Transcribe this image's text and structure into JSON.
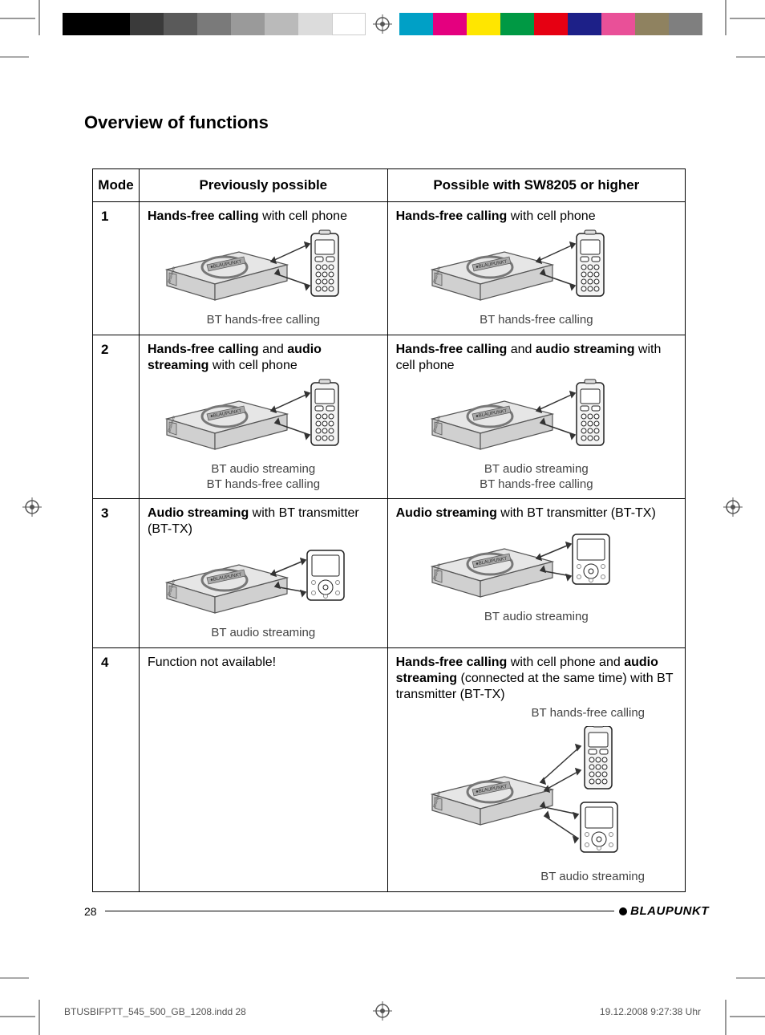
{
  "colorbar": {
    "left_swatches": [
      "#000000",
      "#000000",
      "#3a3a3a",
      "#5a5a5a",
      "#7a7a7a",
      "#9a9a9a",
      "#bababa",
      "#dcdcdc",
      "#ffffff"
    ],
    "right_swatches": [
      "#00a0c6",
      "#e4007f",
      "#ffe600",
      "#009944",
      "#e60012",
      "#1d2088",
      "#e95098",
      "#8f8260",
      "#7f7f7f"
    ]
  },
  "heading": "Overview of functions",
  "table": {
    "headers": {
      "mode": "Mode",
      "prev": "Previously possible",
      "new": "Possible with SW8205 or higher"
    },
    "rows": [
      {
        "mode": "1",
        "prev_html": "<b>Hands-free calling</b> with cell phone",
        "prev_caption": "BT hands-free calling",
        "prev_diagram": "receiver_phone",
        "new_html": "<b>Hands-free calling</b> with cell phone",
        "new_caption": "BT hands-free calling",
        "new_diagram": "receiver_phone"
      },
      {
        "mode": "2",
        "prev_html": "<b>Hands-free calling</b> and <b>audio streaming</b> with cell phone",
        "prev_caption": "BT audio streaming\nBT hands-free calling",
        "prev_diagram": "receiver_phone",
        "new_html": "<b>Hands-free calling</b> and <b>audio streaming</b> with cell phone",
        "new_caption": "BT audio streaming\nBT hands-free calling",
        "new_diagram": "receiver_phone"
      },
      {
        "mode": "3",
        "prev_html": "<b>Audio streaming</b> with BT transmitter (BT-TX)",
        "prev_caption": "BT audio streaming",
        "prev_diagram": "receiver_mp3",
        "new_html": "<b>Audio streaming</b> with BT transmitter (BT-TX)",
        "new_caption": "BT audio streaming",
        "new_diagram": "receiver_mp3"
      },
      {
        "mode": "4",
        "prev_html": "Function not available!",
        "prev_caption": "",
        "prev_diagram": "",
        "new_html": "<b>Hands-free calling</b> with cell phone and <b>audio streaming</b> (connected at the same time) with BT transmitter (BT-TX)",
        "new_caption_top": "BT hands-free calling",
        "new_caption_bottom": "BT audio streaming",
        "new_diagram": "receiver_phone_mp3"
      }
    ]
  },
  "diagram_colors": {
    "device_fill": "#d0d0d0",
    "device_stroke": "#555555",
    "device_top": "#e6e6e6",
    "label_fill": "#a8a8a8",
    "circle_stroke": "#777777",
    "phone_fill": "#f4f4f4",
    "phone_stroke": "#222222",
    "mp3_fill": "#ffffff",
    "arrow_stroke": "#333333"
  },
  "footer": {
    "page": "28",
    "brand": "BLAUPUNKT"
  },
  "slug": {
    "file": "BTUSBIFPTT_545_500_GB_1208.indd   28",
    "stamp": "19.12.2008   9:27:38 Uhr"
  }
}
